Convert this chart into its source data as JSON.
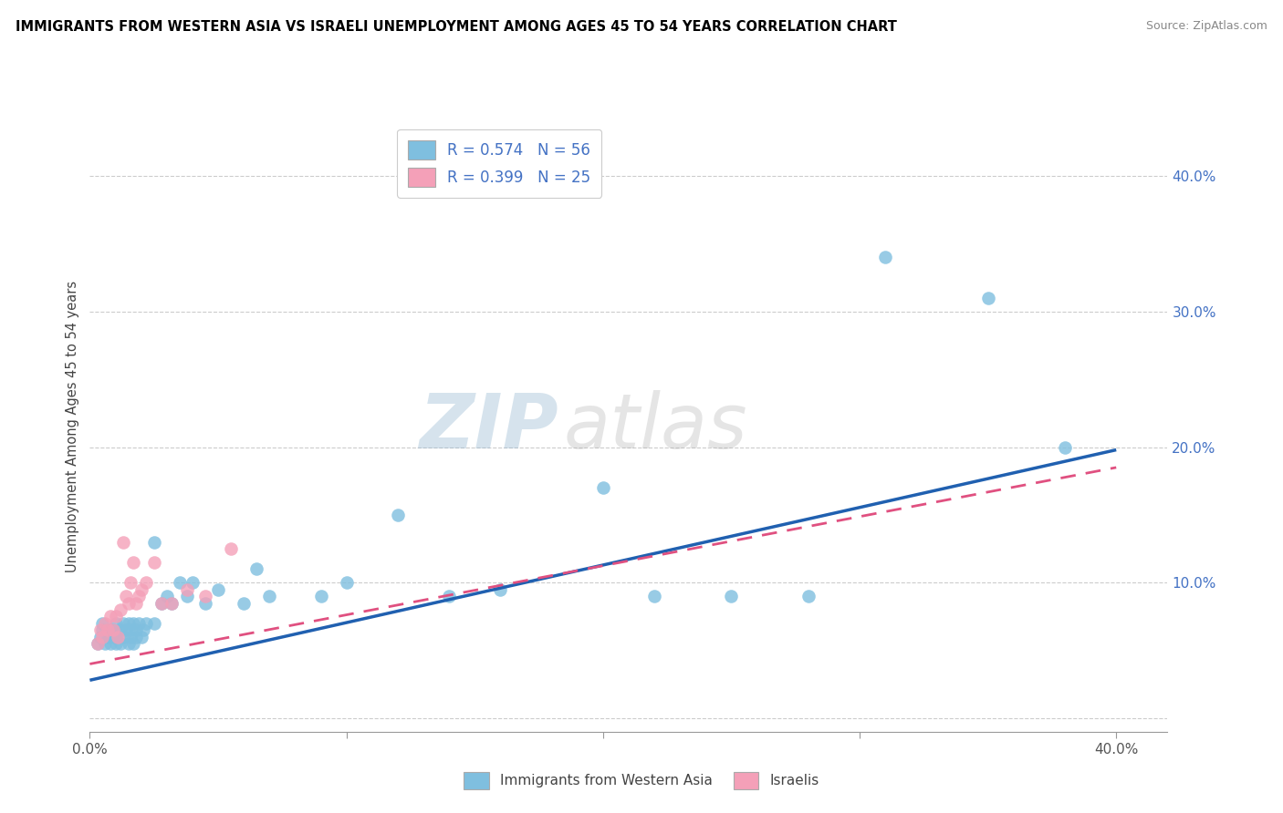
{
  "title": "IMMIGRANTS FROM WESTERN ASIA VS ISRAELI UNEMPLOYMENT AMONG AGES 45 TO 54 YEARS CORRELATION CHART",
  "source": "Source: ZipAtlas.com",
  "ylabel": "Unemployment Among Ages 45 to 54 years",
  "xlim": [
    0.0,
    0.42
  ],
  "ylim": [
    -0.01,
    0.44
  ],
  "legend_R1": "R = 0.574",
  "legend_N1": "N = 56",
  "legend_R2": "R = 0.399",
  "legend_N2": "N = 25",
  "blue_color": "#7fbfdf",
  "pink_color": "#f4a0b8",
  "line_blue_color": "#2060b0",
  "line_pink_color": "#e05080",
  "watermark_zip": "ZIP",
  "watermark_atlas": "atlas",
  "blue_scatter_x": [
    0.003,
    0.004,
    0.005,
    0.005,
    0.006,
    0.007,
    0.007,
    0.008,
    0.008,
    0.009,
    0.009,
    0.01,
    0.01,
    0.01,
    0.012,
    0.012,
    0.013,
    0.013,
    0.014,
    0.015,
    0.015,
    0.016,
    0.016,
    0.017,
    0.017,
    0.018,
    0.018,
    0.019,
    0.02,
    0.021,
    0.022,
    0.025,
    0.025,
    0.028,
    0.03,
    0.032,
    0.035,
    0.038,
    0.04,
    0.045,
    0.05,
    0.06,
    0.065,
    0.07,
    0.09,
    0.1,
    0.12,
    0.14,
    0.16,
    0.2,
    0.22,
    0.25,
    0.28,
    0.31,
    0.35,
    0.38
  ],
  "blue_scatter_y": [
    0.055,
    0.06,
    0.065,
    0.07,
    0.055,
    0.06,
    0.065,
    0.055,
    0.065,
    0.06,
    0.065,
    0.055,
    0.06,
    0.07,
    0.055,
    0.065,
    0.06,
    0.07,
    0.065,
    0.055,
    0.07,
    0.06,
    0.065,
    0.055,
    0.07,
    0.06,
    0.065,
    0.07,
    0.06,
    0.065,
    0.07,
    0.13,
    0.07,
    0.085,
    0.09,
    0.085,
    0.1,
    0.09,
    0.1,
    0.085,
    0.095,
    0.085,
    0.11,
    0.09,
    0.09,
    0.1,
    0.15,
    0.09,
    0.095,
    0.17,
    0.09,
    0.09,
    0.09,
    0.34,
    0.31,
    0.2
  ],
  "pink_scatter_x": [
    0.003,
    0.004,
    0.005,
    0.006,
    0.007,
    0.008,
    0.009,
    0.01,
    0.011,
    0.012,
    0.013,
    0.014,
    0.015,
    0.016,
    0.017,
    0.018,
    0.019,
    0.02,
    0.022,
    0.025,
    0.028,
    0.032,
    0.038,
    0.045,
    0.055
  ],
  "pink_scatter_y": [
    0.055,
    0.065,
    0.06,
    0.07,
    0.065,
    0.075,
    0.065,
    0.075,
    0.06,
    0.08,
    0.13,
    0.09,
    0.085,
    0.1,
    0.115,
    0.085,
    0.09,
    0.095,
    0.1,
    0.115,
    0.085,
    0.085,
    0.095,
    0.09,
    0.125
  ],
  "blue_line_x": [
    0.0,
    0.4
  ],
  "blue_line_y": [
    0.028,
    0.198
  ],
  "pink_line_x": [
    0.0,
    0.4
  ],
  "pink_line_y": [
    0.04,
    0.185
  ]
}
